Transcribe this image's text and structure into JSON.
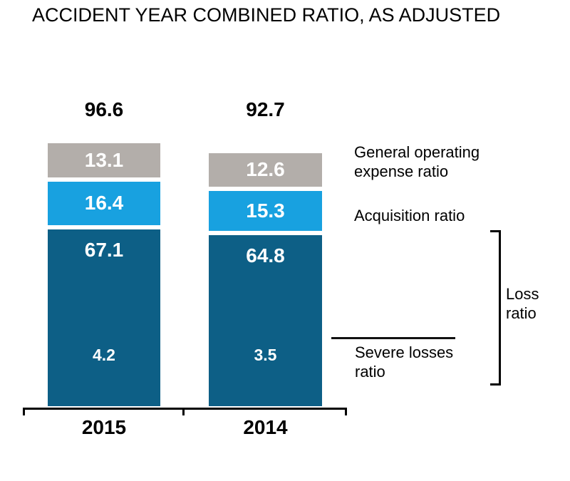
{
  "title": "ACCIDENT YEAR COMBINED RATIO, AS ADJUSTED",
  "colors": {
    "general_operating_expense": "#b3aeaa",
    "acquisition": "#18a1e0",
    "loss": "#0d5f86",
    "text": "#000000",
    "bar_value_text": "#ffffff"
  },
  "chart_data": {
    "type": "bar",
    "subtype": "stacked-column",
    "categories": [
      "2015",
      "2014"
    ],
    "totals": [
      96.6,
      92.7
    ],
    "series": [
      {
        "name": "General operating expense ratio",
        "color": "#b3aeaa",
        "values": [
          13.1,
          12.6
        ]
      },
      {
        "name": "Acquisition ratio",
        "color": "#18a1e0",
        "values": [
          16.4,
          15.3
        ]
      },
      {
        "name": "Loss ratio",
        "color": "#0d5f86",
        "values": [
          67.1,
          64.8
        ]
      }
    ],
    "sub_component": {
      "name": "Severe losses ratio",
      "parent_series": "Loss ratio",
      "values": [
        4.2,
        3.5
      ]
    },
    "title": "ACCIDENT YEAR COMBINED RATIO, AS ADJUSTED",
    "xlabel": "",
    "ylabel": "",
    "grid": false,
    "legend_position": "right",
    "value_labels": "inside-white-bold",
    "total_labels": "above-bars"
  },
  "legend": {
    "general_operating_expense": "General operating expense ratio",
    "acquisition": "Acquisition ratio",
    "loss": "Loss ratio",
    "severe": "Severe losses ratio"
  }
}
